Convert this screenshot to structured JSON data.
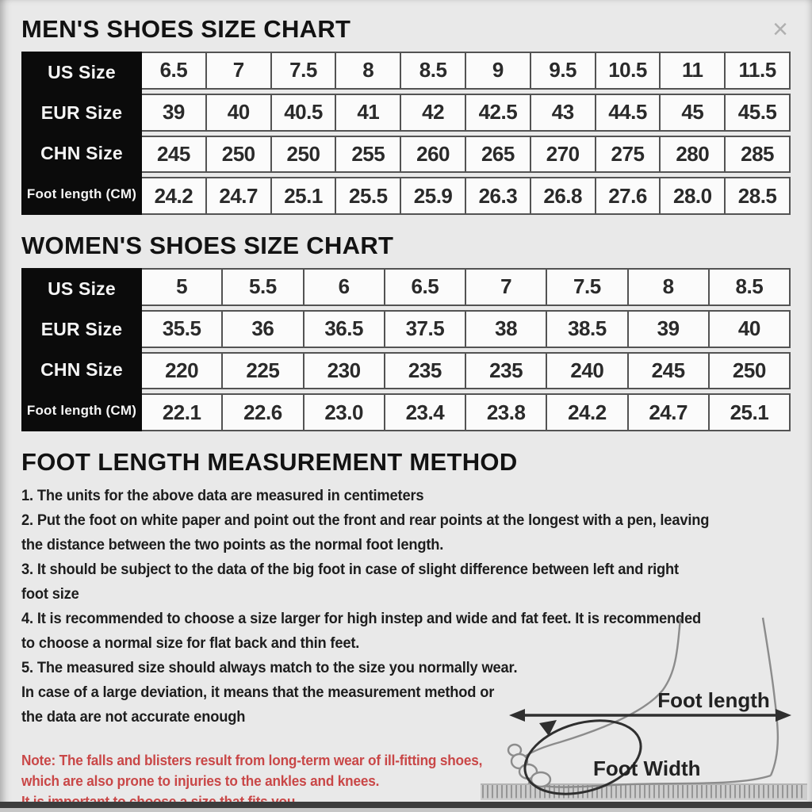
{
  "window": {
    "close_label": "×"
  },
  "mens_chart": {
    "title": "MEN'S SHOES SIZE CHART",
    "rows": [
      {
        "label": "US Size",
        "values": [
          "6.5",
          "7",
          "7.5",
          "8",
          "8.5",
          "9",
          "9.5",
          "10.5",
          "11",
          "11.5"
        ]
      },
      {
        "label": "EUR Size",
        "values": [
          "39",
          "40",
          "40.5",
          "41",
          "42",
          "42.5",
          "43",
          "44.5",
          "45",
          "45.5"
        ]
      },
      {
        "label": "CHN Size",
        "values": [
          "245",
          "250",
          "250",
          "255",
          "260",
          "265",
          "270",
          "275",
          "280",
          "285"
        ]
      },
      {
        "label": "Foot length (CM)",
        "values": [
          "24.2",
          "24.7",
          "25.1",
          "25.5",
          "25.9",
          "26.3",
          "26.8",
          "27.6",
          "28.0",
          "28.5"
        ]
      }
    ]
  },
  "womens_chart": {
    "title": "WOMEN'S SHOES SIZE CHART",
    "rows": [
      {
        "label": "US Size",
        "values": [
          "5",
          "5.5",
          "6",
          "6.5",
          "7",
          "7.5",
          "8",
          "8.5"
        ]
      },
      {
        "label": "EUR Size",
        "values": [
          "35.5",
          "36",
          "36.5",
          "37.5",
          "38",
          "38.5",
          "39",
          "40"
        ]
      },
      {
        "label": "CHN Size",
        "values": [
          "220",
          "225",
          "230",
          "235",
          "235",
          "240",
          "245",
          "250"
        ]
      },
      {
        "label": "Foot length (CM)",
        "values": [
          "22.1",
          "22.6",
          "23.0",
          "23.4",
          "23.8",
          "24.2",
          "24.7",
          "25.1"
        ]
      }
    ]
  },
  "measurement": {
    "title": "FOOT LENGTH MEASUREMENT METHOD",
    "lines": [
      "1. The units for the above data are measured in centimeters",
      "2. Put the foot on white paper and point out the front and rear points at the longest with a pen, leaving",
      "the distance between the two points as the normal foot length.",
      "3. It should be subject to the data of the big foot in case of slight difference between left and right",
      "foot size",
      "4. It is recommended to choose a size larger for high instep and wide and fat feet. It is recommended",
      "to choose a normal size for flat back and thin feet.",
      "5. The measured size should always match to the size you normally wear.",
      "In case of a large deviation, it means that the measurement method or",
      "the data are not accurate enough"
    ]
  },
  "note": {
    "color": "#c94747",
    "lines": [
      "Note: The falls and blisters result from long-term wear of ill-fitting shoes,",
      "which are also prone to injuries to the ankles and knees.",
      "It is important to choose a size that fits you."
    ]
  },
  "illustration": {
    "foot_length_label": "Foot length",
    "foot_width_label": "Foot Width"
  }
}
